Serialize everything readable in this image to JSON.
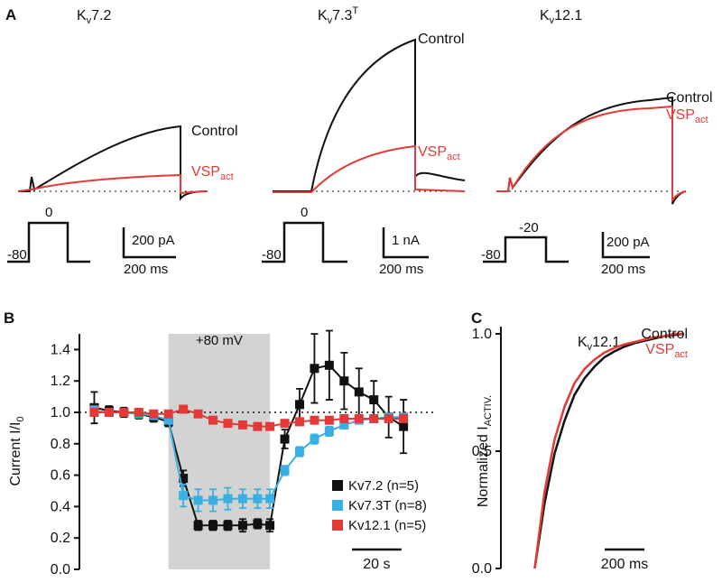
{
  "panel_a": {
    "label": "A",
    "panels": [
      {
        "title": [
          "K",
          "v",
          "7.2"
        ],
        "control": "Control",
        "vsp": [
          "VSP",
          "act"
        ],
        "hold": "-80",
        "step": "0",
        "scale_current": "200 pA",
        "scale_time": "200 ms"
      },
      {
        "title": [
          "K",
          "v",
          "7.3",
          "T"
        ],
        "control": "Control",
        "vsp": [
          "VSP",
          "act"
        ],
        "hold": "-80",
        "step": "0",
        "scale_current": "1 nA",
        "scale_time": "200 ms"
      },
      {
        "title": [
          "K",
          "v",
          "12.1"
        ],
        "control": "Control",
        "vsp": [
          "VSP",
          "act"
        ],
        "hold": "-80",
        "step": "-20",
        "scale_current": "200 pA",
        "scale_time": "200 ms"
      }
    ]
  },
  "chart_data": [
    {
      "type": "line",
      "panel_label": "B",
      "y_label": [
        "Current I/I",
        "0"
      ],
      "x": [
        0,
        6,
        12,
        18,
        24,
        30,
        36,
        42,
        48,
        54,
        60,
        66,
        71,
        77,
        83,
        89,
        95,
        101,
        107,
        113,
        119,
        125
      ],
      "series": [
        {
          "name": "Kv7.2 (n=5)",
          "color": "#111111",
          "values": [
            1.03,
            1.01,
            1.0,
            0.99,
            0.97,
            0.94,
            0.58,
            0.28,
            0.28,
            0.28,
            0.28,
            0.29,
            0.28,
            0.83,
            1.05,
            1.28,
            1.3,
            1.2,
            1.13,
            1.08,
            0.97,
            0.91
          ],
          "errors": [
            0.1,
            0.03,
            0.03,
            0.03,
            0.03,
            0.03,
            0.05,
            0.03,
            0.03,
            0.03,
            0.04,
            0.03,
            0.04,
            0.06,
            0.1,
            0.22,
            0.22,
            0.18,
            0.15,
            0.12,
            0.13,
            0.17
          ]
        },
        {
          "name": "Kv7.3T (n=8)",
          "color": "#3ab0e2",
          "values": [
            1.01,
            1.0,
            1.0,
            0.99,
            0.98,
            0.95,
            0.47,
            0.44,
            0.44,
            0.45,
            0.45,
            0.45,
            0.45,
            0.63,
            0.75,
            0.83,
            0.88,
            0.92,
            0.95,
            0.96,
            0.97,
            0.97
          ],
          "errors": [
            0.03,
            0.02,
            0.02,
            0.02,
            0.02,
            0.02,
            0.07,
            0.07,
            0.07,
            0.07,
            0.06,
            0.06,
            0.06,
            0.03,
            0.03,
            0.03,
            0.03,
            0.02,
            0.02,
            0.02,
            0.02,
            0.02
          ]
        },
        {
          "name": "Kv12.1 (n=5)",
          "color": "#e23a36",
          "values": [
            1.0,
            1.0,
            1.0,
            1.0,
            0.99,
            0.99,
            1.02,
            0.99,
            0.95,
            0.93,
            0.92,
            0.91,
            0.91,
            0.93,
            0.94,
            0.95,
            0.95,
            0.96,
            0.96,
            0.96,
            0.96,
            0.96
          ],
          "errors": [
            0.02,
            0.02,
            0.02,
            0.02,
            0.02,
            0.02,
            0.02,
            0.02,
            0.02,
            0.02,
            0.02,
            0.02,
            0.02,
            0.02,
            0.02,
            0.02,
            0.02,
            0.02,
            0.02,
            0.02,
            0.02,
            0.02
          ]
        }
      ],
      "xlim": [
        -6,
        137
      ],
      "ylim": [
        0,
        1.5
      ],
      "yticks": [
        {
          "value": 0,
          "label": "0.0"
        },
        {
          "value": 0.2,
          "label": "0.2"
        },
        {
          "value": 0.4,
          "label": "0.4"
        },
        {
          "value": 0.6,
          "label": "0.6"
        },
        {
          "value": 0.8,
          "label": "0.8"
        },
        {
          "value": 1,
          "label": "1.0"
        },
        {
          "value": 1.2,
          "label": "1.2"
        },
        {
          "value": 1.4,
          "label": "1.4"
        }
      ],
      "reference_line": 1,
      "shade": {
        "label": "+80 mV",
        "range": [
          30,
          71
        ]
      },
      "scalebar": {
        "value": 20,
        "label": "20 s"
      },
      "legend": "lower right"
    },
    {
      "type": "line",
      "panel_label": "C",
      "title": [
        "K",
        "v",
        "12.1"
      ],
      "y_label": [
        "Normalized I",
        "ACTIV."
      ],
      "x": [
        0,
        50,
        100,
        150,
        200,
        250,
        300,
        350,
        400,
        450,
        500,
        550,
        600,
        650,
        700,
        750
      ],
      "series": [
        {
          "name": [
            "Control"
          ],
          "color": "#111111",
          "values": [
            0,
            0.28,
            0.49,
            0.63,
            0.74,
            0.81,
            0.86,
            0.9,
            0.925,
            0.945,
            0.96,
            0.97,
            0.98,
            0.99,
            0.995,
            1.0
          ]
        },
        {
          "name": [
            "VSP",
            "act"
          ],
          "color": "#e23a36",
          "values": [
            0,
            0.33,
            0.55,
            0.69,
            0.79,
            0.85,
            0.89,
            0.92,
            0.94,
            0.955,
            0.965,
            0.975,
            0.985,
            0.99,
            1.0,
            1.0
          ]
        }
      ],
      "xlim": [
        -170,
        760
      ],
      "ylim": [
        0,
        1
      ],
      "yticks": [
        {
          "value": 0,
          "label": "0.0"
        },
        {
          "value": 0.5,
          "label": "0.5"
        },
        {
          "value": 1,
          "label": "1.0"
        }
      ],
      "scalebar": {
        "value": 200,
        "label": "200 ms"
      }
    }
  ]
}
